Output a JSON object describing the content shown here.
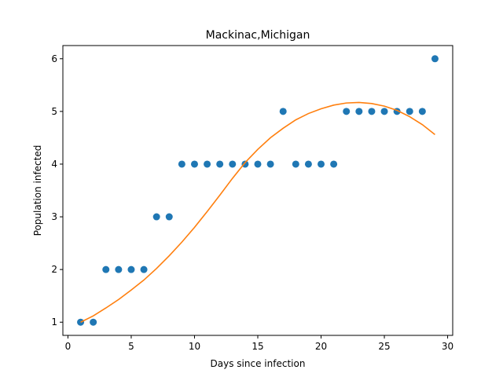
{
  "chart_data": {
    "type": "scatter",
    "title": "Mackinac,Michigan",
    "xlabel": "Days since infection",
    "ylabel": "Population infected",
    "xlim": [
      -0.4,
      30.4
    ],
    "ylim": [
      0.75,
      6.25
    ],
    "xticks": [
      0,
      5,
      10,
      15,
      20,
      25,
      30
    ],
    "yticks": [
      1,
      2,
      3,
      4,
      5,
      6
    ],
    "grid": false,
    "series": [
      {
        "kind": "scatter",
        "color": "#1f77b4",
        "x": [
          1,
          2,
          3,
          4,
          5,
          6,
          7,
          8,
          9,
          10,
          11,
          12,
          13,
          14,
          15,
          16,
          17,
          18,
          19,
          20,
          21,
          22,
          23,
          24,
          25,
          26,
          27,
          28,
          29
        ],
        "y": [
          1,
          1,
          2,
          2,
          2,
          2,
          3,
          3,
          4,
          4,
          4,
          4,
          4,
          4,
          4,
          4,
          5,
          4,
          4,
          4,
          4,
          5,
          5,
          5,
          5,
          5,
          5,
          5,
          6
        ]
      },
      {
        "kind": "line",
        "color": "#ff7f0e",
        "x": [
          1,
          2,
          3,
          4,
          5,
          6,
          7,
          8,
          9,
          10,
          11,
          12,
          13,
          14,
          15,
          16,
          17,
          18,
          19,
          20,
          21,
          22,
          23,
          24,
          25,
          26,
          27,
          28,
          29
        ],
        "y": [
          1.0,
          1.12,
          1.27,
          1.43,
          1.61,
          1.8,
          2.02,
          2.26,
          2.52,
          2.8,
          3.1,
          3.41,
          3.73,
          4.03,
          4.28,
          4.5,
          4.68,
          4.84,
          4.96,
          5.05,
          5.12,
          5.16,
          5.17,
          5.15,
          5.1,
          5.02,
          4.9,
          4.75,
          4.56
        ]
      }
    ]
  }
}
